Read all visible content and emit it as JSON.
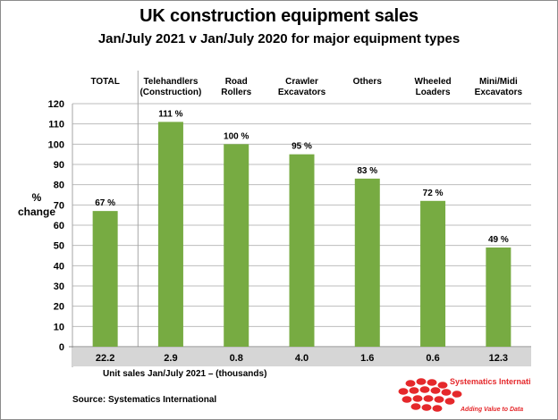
{
  "title": "UK construction equipment sales",
  "subtitle": "Jan/July 2021  v  Jan/July 2020 for major equipment types",
  "chart_data": {
    "type": "bar",
    "ylabel_line1": "%",
    "ylabel_line2": "change",
    "ylim": [
      0,
      120
    ],
    "yticks": [
      0,
      10,
      20,
      30,
      40,
      50,
      60,
      70,
      80,
      90,
      100,
      110,
      120
    ],
    "grid": true,
    "categories": [
      [
        "TOTAL"
      ],
      [
        "Telehandlers",
        "(Construction)"
      ],
      [
        "Road",
        "Rollers"
      ],
      [
        "Crawler",
        "Excavators"
      ],
      [
        "Others"
      ],
      [
        "Wheeled",
        "Loaders"
      ],
      [
        "Mini/Midi",
        "Excavators"
      ]
    ],
    "values": [
      67,
      111,
      100,
      95,
      83,
      72,
      49
    ],
    "data_labels": [
      "67 %",
      "111 %",
      "100 %",
      "95 %",
      "83 %",
      "72 %",
      "49 %"
    ],
    "unit_sales": [
      "22.2",
      "2.9",
      "0.8",
      "4.0",
      "1.6",
      "0.6",
      "12.3"
    ],
    "unit_sales_caption": "Unit sales Jan/July 2021 – (thousands)",
    "bar_color": "#77ab42"
  },
  "source": "Source: Systematics International",
  "logo": {
    "name": "Systematics International Ltd.",
    "tagline": "Adding Value to Data",
    "color": "#e5282b"
  }
}
